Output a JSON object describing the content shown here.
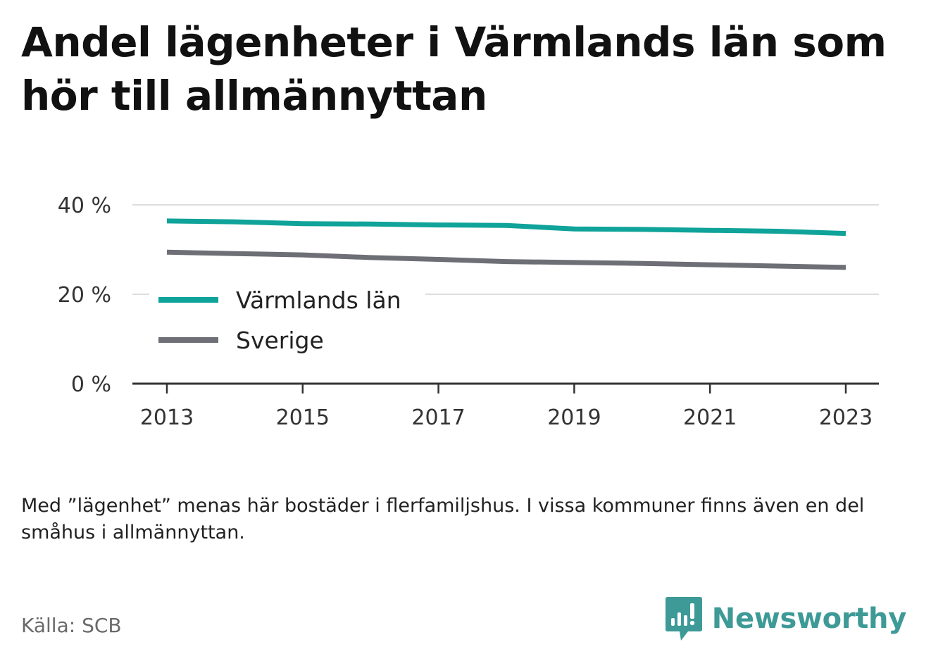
{
  "title": "Andel lägenheter i Värmlands län som hör till allmännyttan",
  "note": "Med ”lägenhet” menas här bostäder i flerfamiljshus. I vissa kommuner finns även en del småhus i allmännyttan.",
  "source": "Källa: SCB",
  "brand": {
    "name": "Newsworthy",
    "icon": "newsworthy-logo-icon",
    "color": "#3d9a96"
  },
  "colors": {
    "varmland": "#0fa39a",
    "sverige": "#6e6e76",
    "grid": "#dddddd",
    "axis": "#333333"
  },
  "chart_data": {
    "type": "line",
    "x": [
      2013,
      2014,
      2015,
      2016,
      2017,
      2018,
      2019,
      2020,
      2021,
      2022,
      2023
    ],
    "x_tick_labels": [
      "2013",
      "2015",
      "2017",
      "2019",
      "2021",
      "2023"
    ],
    "y_tick_labels": [
      "0 %",
      "20 %",
      "40 %"
    ],
    "y_ticks": [
      0,
      20,
      40
    ],
    "ylim": [
      0,
      40
    ],
    "xlim": [
      2012.5,
      2023.5
    ],
    "grid": true,
    "legend_position": "lower-left",
    "series": [
      {
        "name": "Värmlands län",
        "color": "#0fa39a",
        "values": [
          36.4,
          36.2,
          35.8,
          35.7,
          35.5,
          35.4,
          34.6,
          34.5,
          34.3,
          34.1,
          33.6
        ]
      },
      {
        "name": "Sverige",
        "color": "#6e6e76",
        "values": [
          29.4,
          29.1,
          28.8,
          28.2,
          27.8,
          27.3,
          27.1,
          26.9,
          26.6,
          26.3,
          26.0
        ]
      }
    ]
  }
}
